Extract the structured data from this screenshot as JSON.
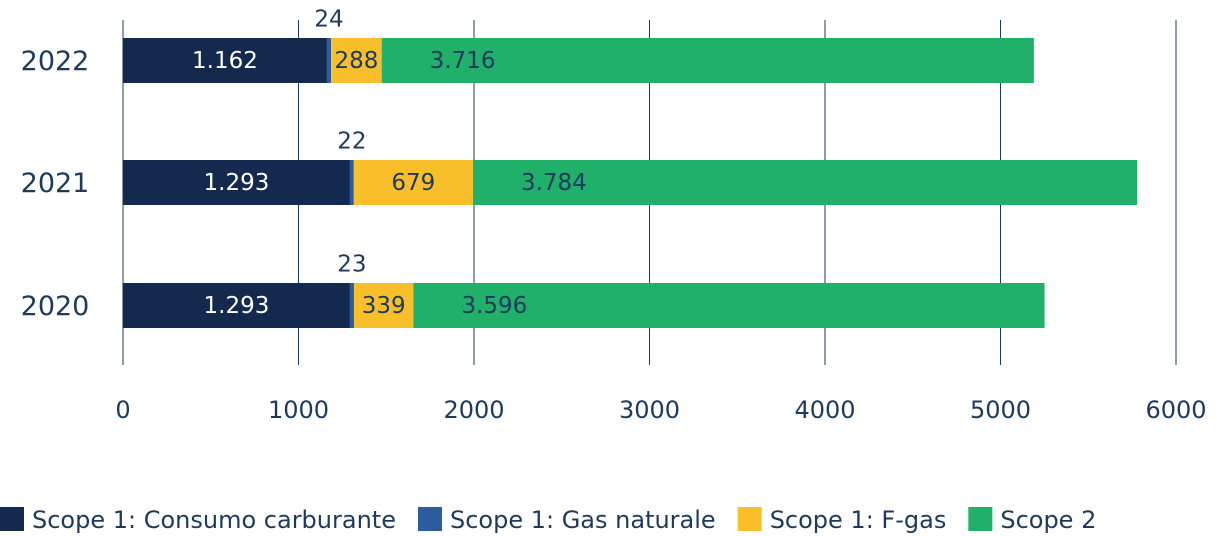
{
  "chart_data": {
    "type": "stacked-barh",
    "categories": [
      "2022",
      "2021",
      "2020"
    ],
    "series": [
      {
        "name": "Scope 1: Consumo carburante",
        "color": "#14294e",
        "values": [
          1162,
          1293,
          1293
        ],
        "value_labels": [
          "1.162",
          "1.293",
          "1.293"
        ]
      },
      {
        "name": "Scope 1: Gas naturale",
        "color": "#2b5c9e",
        "values": [
          24,
          22,
          23
        ]
      },
      {
        "name": "Scope 1: F-gas",
        "color": "#f9bf2a",
        "values": [
          288,
          679,
          339
        ]
      },
      {
        "name": "Scope 2",
        "color": "#21b06a",
        "values": [
          3716,
          3784,
          3596
        ],
        "value_labels": [
          "3.716",
          "3.784",
          "3.596"
        ]
      }
    ],
    "xlim": [
      0,
      6000
    ],
    "xticks": [
      0,
      1000,
      2000,
      3000,
      4000,
      5000,
      6000
    ],
    "grid": true,
    "legend": "bottom"
  }
}
